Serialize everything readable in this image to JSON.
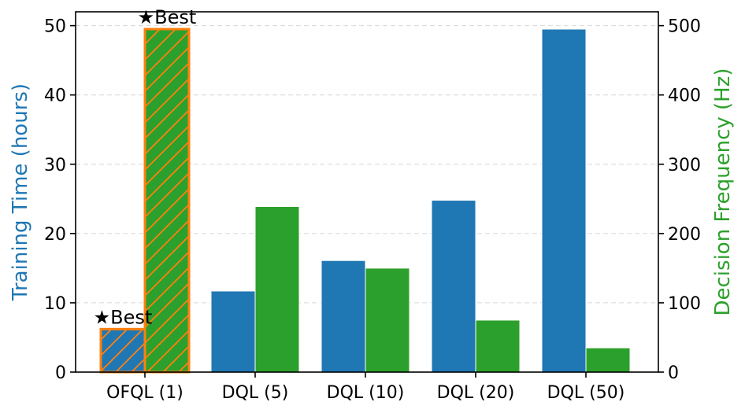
{
  "chart_data": {
    "type": "bar",
    "categories": [
      "OFQL (1)",
      "DQL (5)",
      "DQL (10)",
      "DQL (20)",
      "DQL (50)"
    ],
    "series": [
      {
        "axis": "left",
        "color": "#1f77b4",
        "values": [
          6.2,
          11.7,
          16.1,
          24.8,
          49.5
        ]
      },
      {
        "axis": "right",
        "color": "#2ca02c",
        "values": [
          495,
          239,
          150,
          75,
          35
        ]
      }
    ],
    "ylabel": "Training Time (hours)",
    "y2label": "Decision Frequency (Hz)",
    "ylim": [
      0,
      52
    ],
    "y2lim": [
      0,
      520
    ],
    "yticks": [
      0,
      10,
      20,
      30,
      40,
      50
    ],
    "y2ticks": [
      0,
      100,
      200,
      300,
      400,
      500
    ],
    "grid": "horizontal dashed",
    "highlight": {
      "category": "OFQL (1)",
      "edge_color": "#ff7f0e",
      "hatch": "diagonal",
      "label": "★Best"
    }
  }
}
